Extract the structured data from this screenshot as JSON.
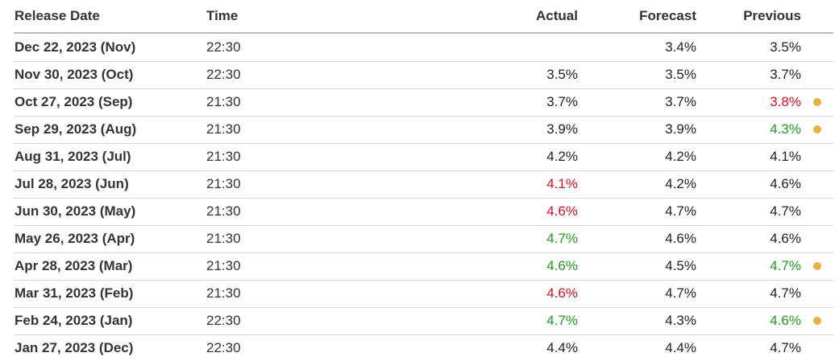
{
  "header": {
    "columns": [
      "Release Date",
      "Time",
      "Actual",
      "Forecast",
      "Previous"
    ]
  },
  "colors": {
    "red": "#e0101e",
    "green": "#1a9f1a",
    "marker": "#ecb13c",
    "text": "#222222"
  },
  "table": {
    "rows": [
      {
        "date": "Dec 22, 2023 (Nov)",
        "time": "22:30",
        "actual": null,
        "forecast": "3.4%",
        "previous": "3.5%"
      },
      {
        "date": "Nov 30, 2023 (Oct)",
        "time": "22:30",
        "actual": "3.5%",
        "forecast": "3.5%",
        "previous": "3.7%"
      },
      {
        "date": "Oct 27, 2023 (Sep)",
        "time": "21:30",
        "actual": "3.7%",
        "forecast": "3.7%",
        "previous": "3.8%",
        "previous_color": "red",
        "marker": true
      },
      {
        "date": "Sep 29, 2023 (Aug)",
        "time": "21:30",
        "actual": "3.9%",
        "forecast": "3.9%",
        "previous": "4.3%",
        "previous_color": "green",
        "marker": true
      },
      {
        "date": "Aug 31, 2023 (Jul)",
        "time": "21:30",
        "actual": "4.2%",
        "forecast": "4.2%",
        "previous": "4.1%"
      },
      {
        "date": "Jul 28, 2023 (Jun)",
        "time": "21:30",
        "actual": "4.1%",
        "actual_color": "red",
        "forecast": "4.2%",
        "previous": "4.6%"
      },
      {
        "date": "Jun 30, 2023 (May)",
        "time": "21:30",
        "actual": "4.6%",
        "actual_color": "red",
        "forecast": "4.7%",
        "previous": "4.7%"
      },
      {
        "date": "May 26, 2023 (Apr)",
        "time": "21:30",
        "actual": "4.7%",
        "actual_color": "green",
        "forecast": "4.6%",
        "previous": "4.6%"
      },
      {
        "date": "Apr 28, 2023 (Mar)",
        "time": "21:30",
        "actual": "4.6%",
        "actual_color": "green",
        "forecast": "4.5%",
        "previous": "4.7%",
        "previous_color": "green",
        "marker": true
      },
      {
        "date": "Mar 31, 2023 (Feb)",
        "time": "21:30",
        "actual": "4.6%",
        "actual_color": "red",
        "forecast": "4.7%",
        "previous": "4.7%"
      },
      {
        "date": "Feb 24, 2023 (Jan)",
        "time": "22:30",
        "actual": "4.7%",
        "actual_color": "green",
        "forecast": "4.3%",
        "previous": "4.6%",
        "previous_color": "green",
        "marker": true
      },
      {
        "date": "Jan 27, 2023 (Dec)",
        "time": "22:30",
        "actual": "4.4%",
        "forecast": "4.4%",
        "previous": "4.7%"
      }
    ]
  }
}
